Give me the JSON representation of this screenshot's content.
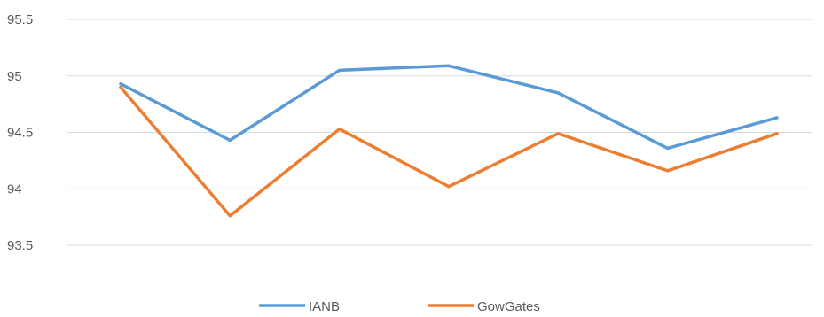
{
  "chart_data": {
    "type": "line",
    "title": "",
    "xlabel": "",
    "ylabel": "",
    "x": [
      1,
      2,
      3,
      4,
      5,
      6,
      7
    ],
    "ylim": [
      93.5,
      95.5
    ],
    "yticks": [
      "93.5",
      "94",
      "94.5",
      "95",
      "95.5"
    ],
    "grid": true,
    "legend": "bottom",
    "series": [
      {
        "name": "IANB",
        "color": "#5b9bd5",
        "values": [
          94.93,
          94.43,
          95.05,
          95.09,
          94.85,
          94.36,
          94.63
        ]
      },
      {
        "name": "GowGates",
        "color": "#ed7d31",
        "values": [
          94.9,
          93.76,
          94.53,
          94.02,
          94.49,
          94.16,
          94.49
        ]
      }
    ]
  }
}
